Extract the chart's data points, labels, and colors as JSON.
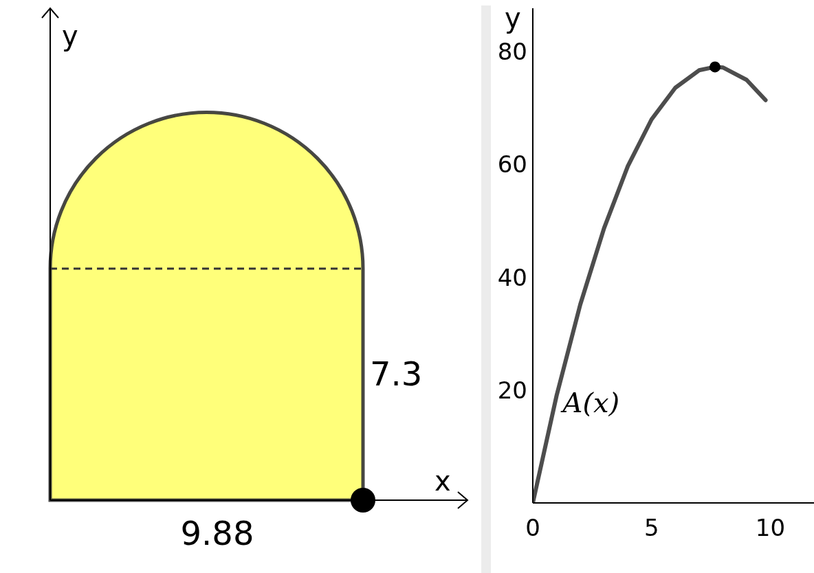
{
  "chart_data": [
    {
      "type": "other",
      "xlabel": "x",
      "ylabel": "y",
      "annotations": [
        "9.88",
        "7.3"
      ]
    },
    {
      "type": "line",
      "ylabel": "y",
      "xlim": [
        0,
        12.07
      ],
      "ylim": [
        0,
        87.7
      ],
      "xticks": [
        0,
        5,
        10
      ],
      "yticks": [
        20,
        40,
        60,
        80
      ],
      "series": [
        {
          "name": "A(x)",
          "type": "line",
          "color": "#4d4d4d",
          "x": [
            0,
            1,
            2,
            3,
            4,
            5,
            6,
            7,
            7.67,
            8,
            9,
            9.8
          ],
          "values": [
            0,
            19.0,
            35.2,
            48.7,
            59.7,
            68.0,
            73.6,
            76.7,
            77.3,
            77.2,
            75.0,
            71.4
          ]
        },
        {
          "type": "scatter",
          "color": "#000000",
          "x": [
            7.67
          ],
          "values": [
            77.3
          ]
        }
      ]
    }
  ]
}
